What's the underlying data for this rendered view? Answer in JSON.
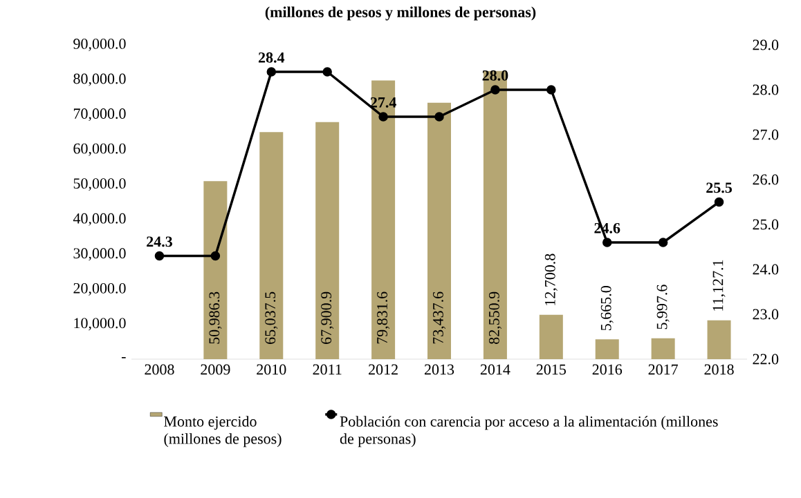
{
  "chart_data": {
    "type": "bar",
    "title": "(millones de pesos y millones de personas)",
    "categories": [
      "2008",
      "2009",
      "2010",
      "2011",
      "2012",
      "2013",
      "2014",
      "2015",
      "2016",
      "2017",
      "2018"
    ],
    "series": [
      {
        "name": "Monto ejercido (millones de pesos)",
        "color": "#b5a673",
        "values": [
          null,
          50986.3,
          65037.5,
          67900.9,
          79831.6,
          73437.6,
          82550.9,
          12700.8,
          5665.0,
          5997.6,
          11127.1
        ],
        "value_labels": [
          null,
          "50,986.3",
          "65,037.5",
          "67,900.9",
          "79,831.6",
          "73,437.6",
          "82,550.9",
          "12,700.8",
          "5,665.0",
          "5,997.6",
          "11,127.1"
        ]
      },
      {
        "name": "Población con carencia por acceso a la alimentación (millones de personas)",
        "type": "line",
        "axis": "y2",
        "color": "#000000",
        "values": [
          24.3,
          24.3,
          28.4,
          28.4,
          27.4,
          27.4,
          28.0,
          28.0,
          24.6,
          24.6,
          25.5
        ],
        "value_labels": [
          "24.3",
          null,
          "28.4",
          null,
          "27.4",
          null,
          "28.0",
          null,
          "24.6",
          null,
          "25.5"
        ]
      }
    ],
    "ylim": [
      0,
      90000
    ],
    "yticks": [
      {
        "value": 0,
        "label": "-"
      },
      {
        "value": 10000,
        "label": "10,000.0"
      },
      {
        "value": 20000,
        "label": "20,000.0"
      },
      {
        "value": 30000,
        "label": "30,000.0"
      },
      {
        "value": 40000,
        "label": "40,000.0"
      },
      {
        "value": 50000,
        "label": "50,000.0"
      },
      {
        "value": 60000,
        "label": "60,000.0"
      },
      {
        "value": 70000,
        "label": "70,000.0"
      },
      {
        "value": 80000,
        "label": "80,000.0"
      },
      {
        "value": 90000,
        "label": "90,000.0"
      }
    ],
    "y2lim": [
      22,
      29
    ],
    "y2ticks": [
      {
        "value": 22,
        "label": "22.0"
      },
      {
        "value": 23,
        "label": "23.0"
      },
      {
        "value": 24,
        "label": "24.0"
      },
      {
        "value": 25,
        "label": "25.0"
      },
      {
        "value": 26,
        "label": "26.0"
      },
      {
        "value": 27,
        "label": "27.0"
      },
      {
        "value": 28,
        "label": "28.0"
      },
      {
        "value": 29,
        "label": "29.0"
      }
    ],
    "legend": "bottom",
    "marker": "circle",
    "line_style": "solid"
  }
}
